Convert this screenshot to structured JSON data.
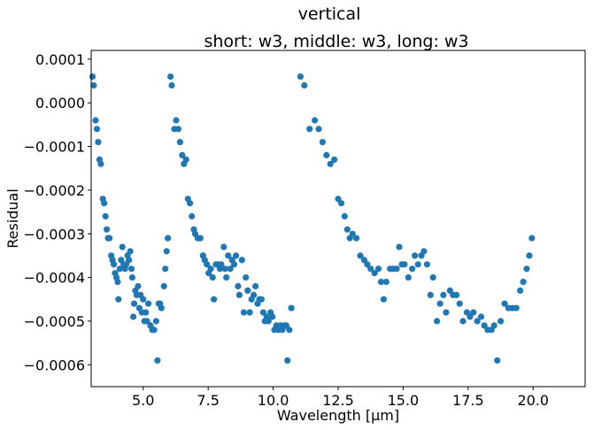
{
  "chart_data": {
    "type": "scatter",
    "suptitle": "vertical",
    "title": "short: w3, middle: w3, long: w3",
    "xlabel": "Wavelength [µm]",
    "ylabel": "Residual",
    "xlim": [
      3.0,
      22.0
    ],
    "ylim": [
      -0.00065,
      0.00012
    ],
    "xticks": [
      5.0,
      7.5,
      10.0,
      12.5,
      15.0,
      17.5,
      20.0
    ],
    "xtick_labels": [
      "5.0",
      "7.5",
      "10.0",
      "12.5",
      "15.0",
      "17.5",
      "20.0"
    ],
    "yticks": [
      -0.0006,
      -0.0005,
      -0.0004,
      -0.0003,
      -0.0002,
      -0.0001,
      0.0,
      0.0001
    ],
    "ytick_labels": [
      "−0.0006",
      "−0.0005",
      "−0.0004",
      "−0.0003",
      "−0.0002",
      "−0.0001",
      "0.0000",
      "0.0001"
    ],
    "grid": false,
    "marker_color": "#1f77b4",
    "series": [
      {
        "points": [
          [
            3.05,
            6e-05
          ],
          [
            3.1,
            4e-05
          ],
          [
            3.17,
            -4e-05
          ],
          [
            3.22,
            -6e-05
          ],
          [
            3.27,
            -9e-05
          ],
          [
            3.32,
            -0.00013
          ],
          [
            3.37,
            -0.00014
          ],
          [
            3.45,
            -0.00022
          ],
          [
            3.5,
            -0.00023
          ],
          [
            3.55,
            -0.00026
          ],
          [
            3.6,
            -0.00029
          ],
          [
            3.65,
            -0.00031
          ],
          [
            3.7,
            -0.00031
          ],
          [
            3.77,
            -0.00035
          ],
          [
            3.82,
            -0.00036
          ],
          [
            3.87,
            -0.00037
          ],
          [
            3.92,
            -0.00039
          ],
          [
            3.97,
            -0.0004
          ],
          [
            4.02,
            -0.00041
          ],
          [
            4.05,
            -0.00045
          ],
          [
            4.1,
            -0.00038
          ],
          [
            4.15,
            -0.00036
          ],
          [
            4.2,
            -0.00033
          ],
          [
            4.25,
            -0.00037
          ],
          [
            4.3,
            -0.00038
          ],
          [
            4.35,
            -0.00037
          ],
          [
            4.4,
            -0.00035
          ],
          [
            4.45,
            -0.00036
          ],
          [
            4.5,
            -0.00034
          ],
          [
            4.55,
            -0.00038
          ],
          [
            4.58,
            -0.0004
          ],
          [
            4.62,
            -0.00049
          ],
          [
            4.65,
            -0.00046
          ],
          [
            4.7,
            -0.00043
          ],
          [
            4.75,
            -0.00044
          ],
          [
            4.8,
            -0.00042
          ],
          [
            4.85,
            -0.00047
          ],
          [
            4.9,
            -0.00044
          ],
          [
            4.95,
            -0.00048
          ],
          [
            5.0,
            -0.00045
          ],
          [
            5.05,
            -0.0005
          ],
          [
            5.1,
            -0.00048
          ],
          [
            5.15,
            -0.0005
          ],
          [
            5.2,
            -0.00046
          ],
          [
            5.28,
            -0.00051
          ],
          [
            5.35,
            -0.00052
          ],
          [
            5.42,
            -0.00052
          ],
          [
            5.5,
            -0.0005
          ],
          [
            5.55,
            -0.00059
          ],
          [
            5.6,
            -0.00046
          ],
          [
            5.65,
            -0.00046
          ],
          [
            5.7,
            -0.00047
          ],
          [
            5.8,
            -0.00042
          ],
          [
            5.85,
            -0.00038
          ],
          [
            5.9,
            -0.00034
          ],
          [
            5.95,
            -0.00031
          ],
          [
            6.05,
            6e-05
          ],
          [
            6.1,
            4e-05
          ],
          [
            6.2,
            -6e-05
          ],
          [
            6.27,
            -4e-05
          ],
          [
            6.35,
            -6e-05
          ],
          [
            6.42,
            -9e-05
          ],
          [
            6.5,
            -0.00012
          ],
          [
            6.57,
            -0.00014
          ],
          [
            6.65,
            -0.00013
          ],
          [
            6.72,
            -0.00022
          ],
          [
            6.8,
            -0.00023
          ],
          [
            6.87,
            -0.00026
          ],
          [
            6.95,
            -0.00029
          ],
          [
            7.0,
            -0.0003
          ],
          [
            7.1,
            -0.00031
          ],
          [
            7.2,
            -0.00031
          ],
          [
            7.3,
            -0.00035
          ],
          [
            7.37,
            -0.00036
          ],
          [
            7.45,
            -0.00037
          ],
          [
            7.52,
            -0.00039
          ],
          [
            7.6,
            -0.00038
          ],
          [
            7.67,
            -0.0004
          ],
          [
            7.72,
            -0.00045
          ],
          [
            7.8,
            -0.00037
          ],
          [
            7.88,
            -0.00037
          ],
          [
            7.95,
            -0.00038
          ],
          [
            8.0,
            -0.00037
          ],
          [
            8.1,
            -0.00033
          ],
          [
            8.15,
            -0.00038
          ],
          [
            8.2,
            -0.0004
          ],
          [
            8.27,
            -0.00035
          ],
          [
            8.35,
            -0.00038
          ],
          [
            8.42,
            -0.00036
          ],
          [
            8.5,
            -0.00037
          ],
          [
            8.57,
            -0.00035
          ],
          [
            8.65,
            -0.00042
          ],
          [
            8.7,
            -0.00044
          ],
          [
            8.8,
            -0.00036
          ],
          [
            8.87,
            -0.00048
          ],
          [
            8.95,
            -0.0004
          ],
          [
            9.02,
            -0.00043
          ],
          [
            9.1,
            -0.00048
          ],
          [
            9.17,
            -0.00045
          ],
          [
            9.25,
            -0.00044
          ],
          [
            9.32,
            -0.00042
          ],
          [
            9.4,
            -0.00046
          ],
          [
            9.47,
            -0.00045
          ],
          [
            9.55,
            -0.00045
          ],
          [
            9.62,
            -0.00048
          ],
          [
            9.68,
            -0.0005
          ],
          [
            9.75,
            -0.00049
          ],
          [
            9.82,
            -0.0005
          ],
          [
            9.9,
            -0.00048
          ],
          [
            9.97,
            -0.00049
          ],
          [
            10.05,
            -0.00052
          ],
          [
            10.12,
            -0.00051
          ],
          [
            10.2,
            -0.00052
          ],
          [
            10.27,
            -0.00051
          ],
          [
            10.35,
            -0.00052
          ],
          [
            10.42,
            -0.00051
          ],
          [
            10.5,
            -0.00051
          ],
          [
            10.55,
            -0.00059
          ],
          [
            10.62,
            -0.00052
          ],
          [
            10.7,
            -0.00047
          ],
          [
            11.05,
            6e-05
          ],
          [
            11.2,
            4e-05
          ],
          [
            11.4,
            -6e-05
          ],
          [
            11.6,
            -4e-05
          ],
          [
            11.75,
            -6e-05
          ],
          [
            11.9,
            -9e-05
          ],
          [
            12.05,
            -0.00012
          ],
          [
            12.2,
            -0.00014
          ],
          [
            12.35,
            -0.00013
          ],
          [
            12.5,
            -0.00022
          ],
          [
            12.62,
            -0.00023
          ],
          [
            12.75,
            -0.00026
          ],
          [
            12.85,
            -0.00029
          ],
          [
            12.95,
            -0.00031
          ],
          [
            13.05,
            -0.0003
          ],
          [
            13.2,
            -0.00031
          ],
          [
            13.35,
            -0.00035
          ],
          [
            13.5,
            -0.00036
          ],
          [
            13.62,
            -0.00037
          ],
          [
            13.75,
            -0.00038
          ],
          [
            13.9,
            -0.00039
          ],
          [
            14.05,
            -0.00038
          ],
          [
            14.15,
            -0.00041
          ],
          [
            14.25,
            -0.00045
          ],
          [
            14.35,
            -0.00041
          ],
          [
            14.5,
            -0.00038
          ],
          [
            14.62,
            -0.00038
          ],
          [
            14.75,
            -0.00038
          ],
          [
            14.85,
            -0.00033
          ],
          [
            14.95,
            -0.00037
          ],
          [
            15.05,
            -0.00037
          ],
          [
            15.2,
            -0.0004
          ],
          [
            15.35,
            -0.00038
          ],
          [
            15.45,
            -0.00035
          ],
          [
            15.57,
            -0.00037
          ],
          [
            15.7,
            -0.00035
          ],
          [
            15.8,
            -0.00034
          ],
          [
            15.92,
            -0.00037
          ],
          [
            16.05,
            -0.00044
          ],
          [
            16.15,
            -0.0004
          ],
          [
            16.3,
            -0.0005
          ],
          [
            16.42,
            -0.00046
          ],
          [
            16.55,
            -0.00044
          ],
          [
            16.65,
            -0.00048
          ],
          [
            16.8,
            -0.00043
          ],
          [
            16.92,
            -0.00044
          ],
          [
            17.05,
            -0.00044
          ],
          [
            17.17,
            -0.00046
          ],
          [
            17.3,
            -0.0005
          ],
          [
            17.45,
            -0.00048
          ],
          [
            17.57,
            -0.00049
          ],
          [
            17.7,
            -0.00048
          ],
          [
            17.85,
            -0.0005
          ],
          [
            18.0,
            -0.00049
          ],
          [
            18.12,
            -0.00051
          ],
          [
            18.25,
            -0.00052
          ],
          [
            18.4,
            -0.00052
          ],
          [
            18.5,
            -0.00051
          ],
          [
            18.62,
            -0.00059
          ],
          [
            18.75,
            -0.0005
          ],
          [
            18.9,
            -0.00046
          ],
          [
            19.05,
            -0.00047
          ],
          [
            19.2,
            -0.00047
          ],
          [
            19.35,
            -0.00047
          ],
          [
            19.5,
            -0.00043
          ],
          [
            19.62,
            -0.00041
          ],
          [
            19.75,
            -0.00038
          ],
          [
            19.85,
            -0.00035
          ],
          [
            19.95,
            -0.00031
          ]
        ]
      }
    ]
  }
}
